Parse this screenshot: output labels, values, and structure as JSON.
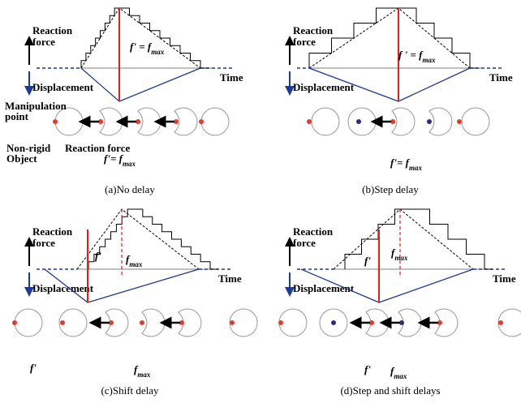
{
  "panels": [
    {
      "caption": "(a)No delay",
      "reaction": [
        "Reaction",
        "force"
      ],
      "displacement": "Displacement",
      "time": "Time",
      "labels": [
        {
          "text": "f' = f",
          "sub": "max"
        },
        {
          "text": "Manipulation"
        },
        {
          "text": "point"
        },
        {
          "text": "Non-rigid"
        },
        {
          "text": "Object"
        },
        {
          "text": "Reaction force"
        },
        {
          "text": "f'= f",
          "sub": "max"
        }
      ]
    },
    {
      "caption": "(b)Step delay",
      "reaction": [
        "Reaction",
        "force"
      ],
      "displacement": "Displacement",
      "time": "Time",
      "labels": [
        {
          "text": "f ' = f",
          "sub": "max"
        },
        {
          "text": "f'= f",
          "sub": "max"
        }
      ]
    },
    {
      "caption": "(c)Shift delay",
      "reaction": [
        "Reaction",
        "force"
      ],
      "displacement": "Displacement",
      "time": "Time",
      "labels": [
        {
          "text": "f'"
        },
        {
          "text": "f",
          "sub": "max"
        },
        {
          "text": "f'"
        },
        {
          "text": "f",
          "sub": "max"
        }
      ]
    },
    {
      "caption": "(d)Step and shift delays",
      "reaction": [
        "Reaction",
        "force"
      ],
      "displacement": "Displacement",
      "time": "Time",
      "labels": [
        {
          "text": "f'"
        },
        {
          "text": "f",
          "sub": "max"
        },
        {
          "text": "f'"
        },
        {
          "text": "f",
          "sub": "max"
        }
      ]
    }
  ]
}
